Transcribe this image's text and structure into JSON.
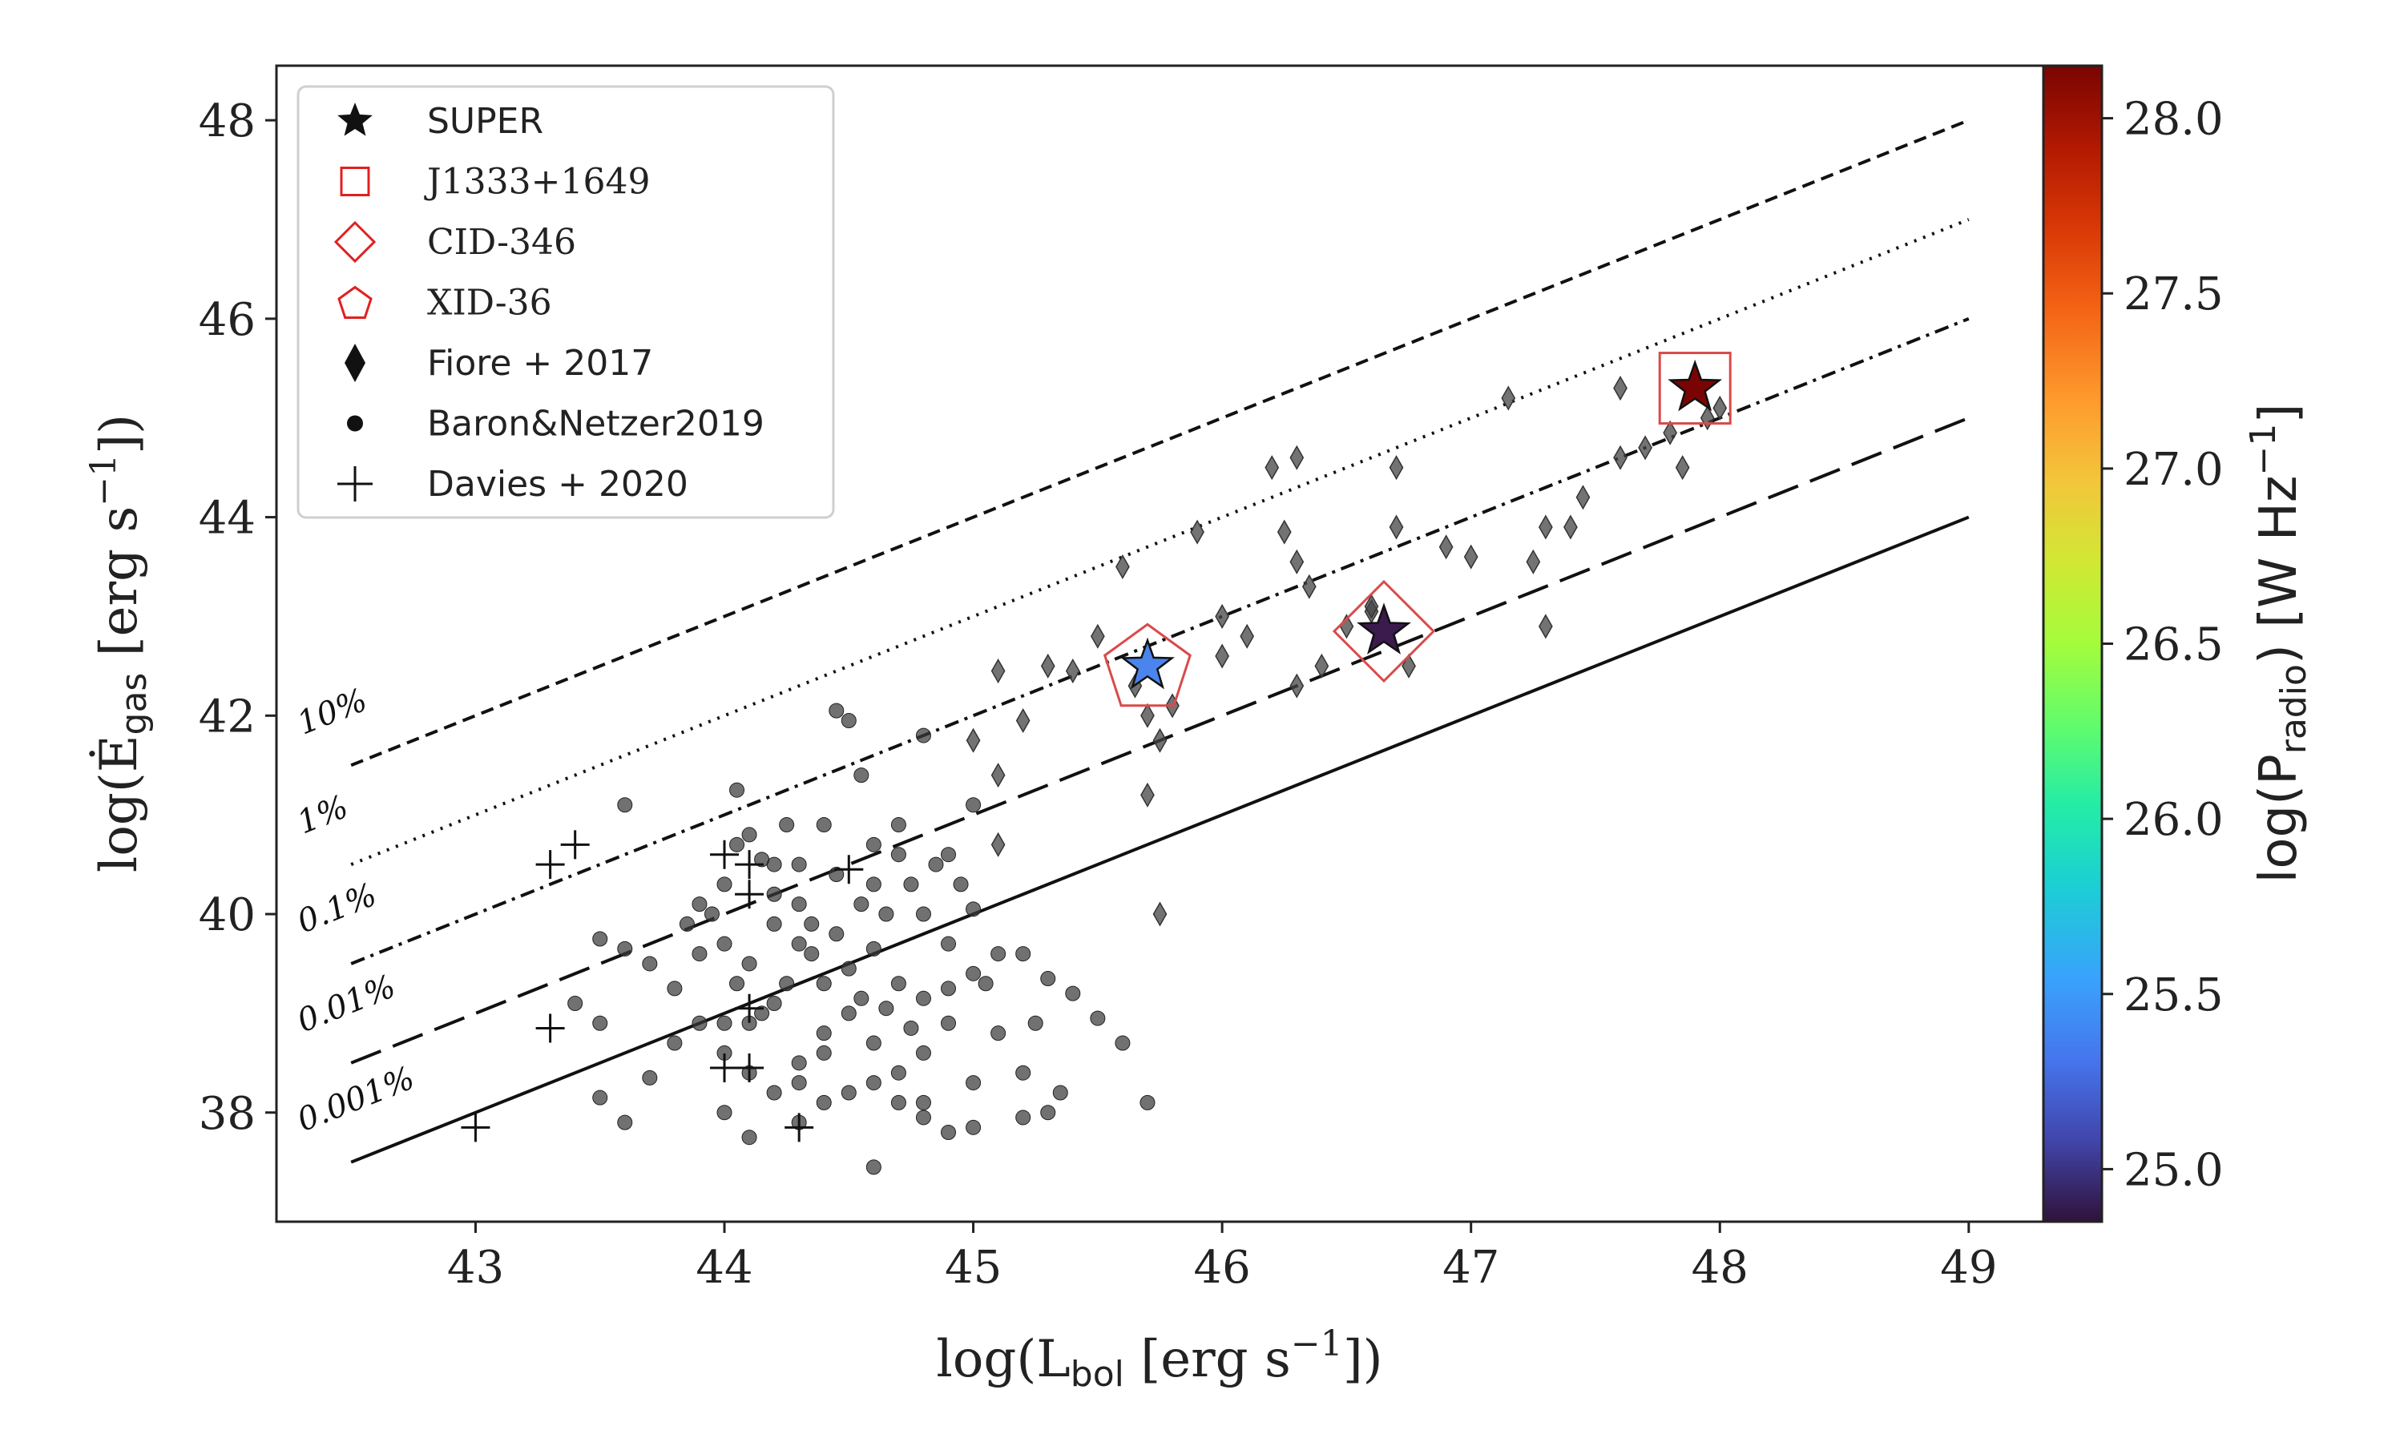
{
  "chart_data": {
    "type": "scatter",
    "xlabel": {
      "prefix": "log(L",
      "sub": "bol",
      "suffix": " [erg s",
      "sup": "−1",
      "end": "])"
    },
    "ylabel": {
      "prefix": "log(Ė",
      "sub": "gas",
      "suffix": " [erg s",
      "sup": "−1",
      "end": "])"
    },
    "xlim": [
      42.2,
      49.3
    ],
    "ylim": [
      36.9,
      48.55
    ],
    "xticks": [
      43,
      44,
      45,
      46,
      47,
      48,
      49
    ],
    "yticks": [
      38,
      40,
      42,
      44,
      46,
      48
    ],
    "colorbar": {
      "label": {
        "prefix": "log(P",
        "sub": "radio",
        "suffix": ") [W Hz",
        "sup": "−1",
        "end": "]"
      },
      "range": [
        24.85,
        28.15
      ],
      "ticks": [
        "25.0",
        "25.5",
        "26.0",
        "26.5",
        "27.0",
        "27.5",
        "28.0"
      ],
      "colormap": "turbo"
    },
    "efficiency_lines": [
      {
        "label": "10%",
        "offset": -1,
        "style": "dashed"
      },
      {
        "label": "1%",
        "offset": -2,
        "style": "dotted"
      },
      {
        "label": "0.1%",
        "offset": -3,
        "style": "dashdot"
      },
      {
        "label": "0.01%",
        "offset": -4,
        "style": "longdash"
      },
      {
        "label": "0.001%",
        "offset": -5,
        "style": "solid"
      }
    ],
    "line_x_range": [
      42.5,
      49.0
    ],
    "legend": {
      "position": "top-left",
      "entries": [
        {
          "label": "SUPER",
          "marker": "star"
        },
        {
          "label": "J1333+1649",
          "marker": "square"
        },
        {
          "label": "CID-346",
          "marker": "diamond"
        },
        {
          "label": "XID-36",
          "marker": "pentagon"
        },
        {
          "label": "Fiore + 2017",
          "marker": "thin-diamond"
        },
        {
          "label": "Baron&Netzer2019",
          "marker": "circle"
        },
        {
          "label": "Davies + 2020",
          "marker": "plus"
        }
      ]
    },
    "series": [
      {
        "name": "SUPER",
        "marker": "star",
        "points": [
          {
            "x": 45.7,
            "y": 42.5,
            "log_p_radio": 25.45,
            "color": "#4a84ec"
          },
          {
            "x": 46.65,
            "y": 42.85,
            "log_p_radio": 24.95,
            "color": "#3b1a4e"
          },
          {
            "x": 47.9,
            "y": 45.3,
            "log_p_radio": 28.1,
            "color": "#7a0403"
          }
        ]
      },
      {
        "name": "J1333+1649",
        "marker": "square",
        "points": [
          {
            "x": 47.9,
            "y": 45.3
          }
        ]
      },
      {
        "name": "CID-346",
        "marker": "diamond",
        "points": [
          {
            "x": 46.65,
            "y": 42.85
          }
        ]
      },
      {
        "name": "XID-36",
        "marker": "pentagon",
        "points": [
          {
            "x": 45.7,
            "y": 42.5
          }
        ]
      },
      {
        "name": "Fiore + 2017",
        "marker": "thin-diamond",
        "points": [
          [
            45.1,
            42.45
          ],
          [
            45.2,
            41.95
          ],
          [
            45.1,
            41.4
          ],
          [
            45.0,
            41.75
          ],
          [
            45.1,
            40.7
          ],
          [
            45.3,
            42.5
          ],
          [
            45.4,
            42.45
          ],
          [
            45.5,
            42.8
          ],
          [
            45.6,
            43.5
          ],
          [
            45.65,
            42.3
          ],
          [
            45.7,
            42.0
          ],
          [
            45.75,
            41.75
          ],
          [
            45.7,
            41.2
          ],
          [
            45.75,
            40.0
          ],
          [
            45.8,
            42.1
          ],
          [
            45.9,
            43.85
          ],
          [
            46.0,
            43.0
          ],
          [
            46.0,
            42.6
          ],
          [
            46.1,
            42.8
          ],
          [
            46.2,
            44.5
          ],
          [
            46.3,
            44.6
          ],
          [
            46.25,
            43.85
          ],
          [
            46.3,
            43.55
          ],
          [
            46.35,
            43.3
          ],
          [
            46.3,
            42.3
          ],
          [
            46.4,
            42.5
          ],
          [
            46.5,
            42.9
          ],
          [
            46.6,
            43.05
          ],
          [
            46.7,
            44.5
          ],
          [
            46.7,
            43.9
          ],
          [
            46.6,
            43.1
          ],
          [
            46.75,
            42.5
          ],
          [
            46.9,
            43.7
          ],
          [
            47.0,
            43.6
          ],
          [
            47.15,
            45.2
          ],
          [
            47.25,
            43.55
          ],
          [
            47.3,
            43.9
          ],
          [
            47.3,
            42.9
          ],
          [
            47.4,
            43.9
          ],
          [
            47.45,
            44.2
          ],
          [
            47.6,
            45.3
          ],
          [
            47.6,
            44.6
          ],
          [
            47.8,
            44.85
          ],
          [
            47.85,
            44.5
          ],
          [
            48.0,
            45.1
          ],
          [
            47.95,
            45.0
          ],
          [
            47.7,
            44.7
          ]
        ]
      },
      {
        "name": "Baron&Netzer2019",
        "marker": "circle",
        "points": [
          [
            43.6,
            41.1
          ],
          [
            43.9,
            40.1
          ],
          [
            44.05,
            41.25
          ],
          [
            44.1,
            40.8
          ],
          [
            44.2,
            40.5
          ],
          [
            44.3,
            40.5
          ],
          [
            44.4,
            40.9
          ],
          [
            44.45,
            42.05
          ],
          [
            44.5,
            41.95
          ],
          [
            44.55,
            41.4
          ],
          [
            44.6,
            40.7
          ],
          [
            44.7,
            40.9
          ],
          [
            44.8,
            41.8
          ],
          [
            44.9,
            40.6
          ],
          [
            45.0,
            41.1
          ],
          [
            45.0,
            40.05
          ],
          [
            44.0,
            39.7
          ],
          [
            44.1,
            39.5
          ],
          [
            44.2,
            39.9
          ],
          [
            44.3,
            39.7
          ],
          [
            44.4,
            39.3
          ],
          [
            44.5,
            39.45
          ],
          [
            44.6,
            39.65
          ],
          [
            44.7,
            39.3
          ],
          [
            44.8,
            39.15
          ],
          [
            44.9,
            39.25
          ],
          [
            45.0,
            39.4
          ],
          [
            45.1,
            39.6
          ],
          [
            45.2,
            39.6
          ],
          [
            45.3,
            39.35
          ],
          [
            45.4,
            39.2
          ],
          [
            45.5,
            38.95
          ],
          [
            44.0,
            38.6
          ],
          [
            44.1,
            38.9
          ],
          [
            44.2,
            39.1
          ],
          [
            44.3,
            38.5
          ],
          [
            44.4,
            38.8
          ],
          [
            44.5,
            39.0
          ],
          [
            44.6,
            38.7
          ],
          [
            44.7,
            38.4
          ],
          [
            44.8,
            38.6
          ],
          [
            44.9,
            38.9
          ],
          [
            45.0,
            38.3
          ],
          [
            45.1,
            38.8
          ],
          [
            45.2,
            38.4
          ],
          [
            45.3,
            38.0
          ],
          [
            44.0,
            38.0
          ],
          [
            44.1,
            37.75
          ],
          [
            44.3,
            37.9
          ],
          [
            44.6,
            37.45
          ],
          [
            44.8,
            37.95
          ],
          [
            45.0,
            37.85
          ],
          [
            43.5,
            38.15
          ],
          [
            43.6,
            37.9
          ],
          [
            43.7,
            38.35
          ],
          [
            43.8,
            38.7
          ],
          [
            43.5,
            39.75
          ],
          [
            43.6,
            39.65
          ],
          [
            43.7,
            39.5
          ],
          [
            43.8,
            39.25
          ],
          [
            43.9,
            39.6
          ],
          [
            43.9,
            38.9
          ],
          [
            44.0,
            40.3
          ],
          [
            44.05,
            40.7
          ],
          [
            44.2,
            40.2
          ],
          [
            44.3,
            40.1
          ],
          [
            44.35,
            39.9
          ],
          [
            44.45,
            39.8
          ],
          [
            44.55,
            40.1
          ],
          [
            44.65,
            40.0
          ],
          [
            44.75,
            40.3
          ],
          [
            44.85,
            40.5
          ],
          [
            44.95,
            40.3
          ],
          [
            44.5,
            38.2
          ],
          [
            44.6,
            38.3
          ],
          [
            44.7,
            38.1
          ],
          [
            44.2,
            38.2
          ],
          [
            44.3,
            38.3
          ],
          [
            44.4,
            38.6
          ],
          [
            44.8,
            38.1
          ],
          [
            45.6,
            38.7
          ],
          [
            45.7,
            38.1
          ],
          [
            43.4,
            39.1
          ],
          [
            43.5,
            38.9
          ],
          [
            44.9,
            39.7
          ],
          [
            45.05,
            39.3
          ],
          [
            44.45,
            40.4
          ],
          [
            44.55,
            39.15
          ],
          [
            44.25,
            39.3
          ],
          [
            44.15,
            39.0
          ],
          [
            44.35,
            39.6
          ],
          [
            44.65,
            39.05
          ],
          [
            44.75,
            38.85
          ],
          [
            45.25,
            38.9
          ],
          [
            45.35,
            38.2
          ],
          [
            44.05,
            39.3
          ],
          [
            43.95,
            40.0
          ],
          [
            44.15,
            40.55
          ],
          [
            44.25,
            40.9
          ],
          [
            44.6,
            40.3
          ],
          [
            44.7,
            40.6
          ],
          [
            44.8,
            40.0
          ],
          [
            44.4,
            38.1
          ],
          [
            44.1,
            38.4
          ],
          [
            44.9,
            37.8
          ],
          [
            45.2,
            37.95
          ],
          [
            44.0,
            38.9
          ],
          [
            43.85,
            39.9
          ]
        ]
      },
      {
        "name": "Davies + 2020",
        "marker": "plus",
        "points": [
          [
            43.0,
            37.85
          ],
          [
            43.3,
            38.85
          ],
          [
            43.3,
            40.5
          ],
          [
            43.4,
            40.7
          ],
          [
            44.0,
            38.45
          ],
          [
            44.1,
            38.45
          ],
          [
            44.1,
            39.05
          ],
          [
            44.1,
            40.5
          ],
          [
            44.1,
            40.2
          ],
          [
            44.3,
            37.85
          ],
          [
            44.5,
            40.45
          ],
          [
            44.0,
            40.6
          ]
        ]
      }
    ]
  }
}
